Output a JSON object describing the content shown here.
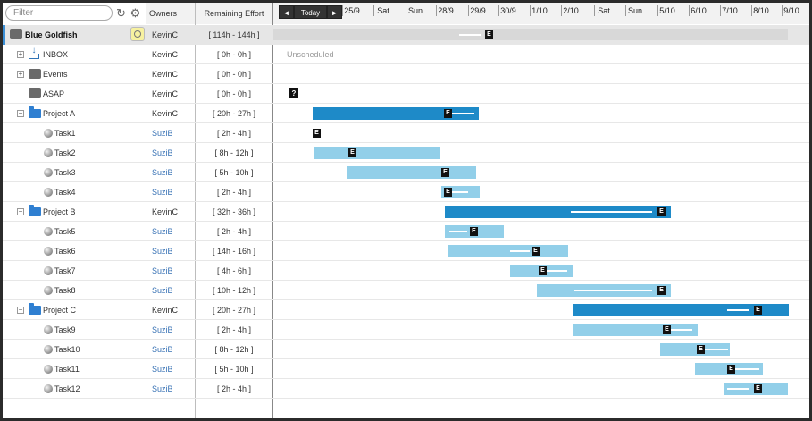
{
  "filter": {
    "placeholder": "Filter",
    "value": ""
  },
  "icons": {
    "refresh": "refresh-icon",
    "settings": "gear-icon"
  },
  "columns": {
    "owners": "Owners",
    "effort": "Remaining Effort"
  },
  "timeline": {
    "nav_prev": "◄",
    "today": "Today",
    "nav_next": "►",
    "days": [
      "25/9",
      "Sat",
      "Sun",
      "28/9",
      "29/9",
      "30/9",
      "1/10",
      "2/10",
      "Sat",
      "Sun",
      "5/10",
      "6/10",
      "7/10",
      "8/10",
      "9/10"
    ]
  },
  "unscheduled_label": "Unscheduled",
  "marker_letter": "E",
  "question_marker": "?",
  "colors": {
    "project_bar": "#1e8ac8",
    "task_bar": "#92cfe9",
    "owner_link": "#3973b5"
  },
  "rows": [
    {
      "name": "Blue Goldfish",
      "owner": "KevinC",
      "effort": "[ 114h - 144h ]",
      "kind": "root"
    },
    {
      "name": "INBOX",
      "owner": "KevinC",
      "effort": "[ 0h - 0h ]",
      "kind": "inbox"
    },
    {
      "name": "Events",
      "owner": "KevinC",
      "effort": "[ 0h - 0h ]",
      "kind": "events"
    },
    {
      "name": "ASAP",
      "owner": "KevinC",
      "effort": "[ 0h - 0h ]",
      "kind": "asap"
    },
    {
      "name": "Project A",
      "owner": "KevinC",
      "effort": "[ 20h - 27h ]",
      "kind": "project"
    },
    {
      "name": "Task1",
      "owner": "SuziB",
      "effort": "[ 2h - 4h ]",
      "kind": "task"
    },
    {
      "name": "Task2",
      "owner": "SuziB",
      "effort": "[ 8h - 12h ]",
      "kind": "task"
    },
    {
      "name": "Task3",
      "owner": "SuziB",
      "effort": "[ 5h - 10h ]",
      "kind": "task"
    },
    {
      "name": "Task4",
      "owner": "SuziB",
      "effort": "[ 2h - 4h ]",
      "kind": "task"
    },
    {
      "name": "Project B",
      "owner": "KevinC",
      "effort": "[ 32h - 36h ]",
      "kind": "project"
    },
    {
      "name": "Task5",
      "owner": "SuziB",
      "effort": "[ 2h - 4h ]",
      "kind": "task"
    },
    {
      "name": "Task6",
      "owner": "SuziB",
      "effort": "[ 14h - 16h ]",
      "kind": "task"
    },
    {
      "name": "Task7",
      "owner": "SuziB",
      "effort": "[ 4h - 6h ]",
      "kind": "task"
    },
    {
      "name": "Task8",
      "owner": "SuziB",
      "effort": "[ 10h - 12h ]",
      "kind": "task"
    },
    {
      "name": "Project C",
      "owner": "KevinC",
      "effort": "[ 20h - 27h ]",
      "kind": "project"
    },
    {
      "name": "Task9",
      "owner": "SuziB",
      "effort": "[ 2h - 4h ]",
      "kind": "task"
    },
    {
      "name": "Task10",
      "owner": "SuziB",
      "effort": "[ 8h - 12h ]",
      "kind": "task"
    },
    {
      "name": "Task11",
      "owner": "SuziB",
      "effort": "[ 5h - 10h ]",
      "kind": "task"
    },
    {
      "name": "Task12",
      "owner": "SuziB",
      "effort": "[ 2h - 4h ]",
      "kind": "task"
    }
  ]
}
